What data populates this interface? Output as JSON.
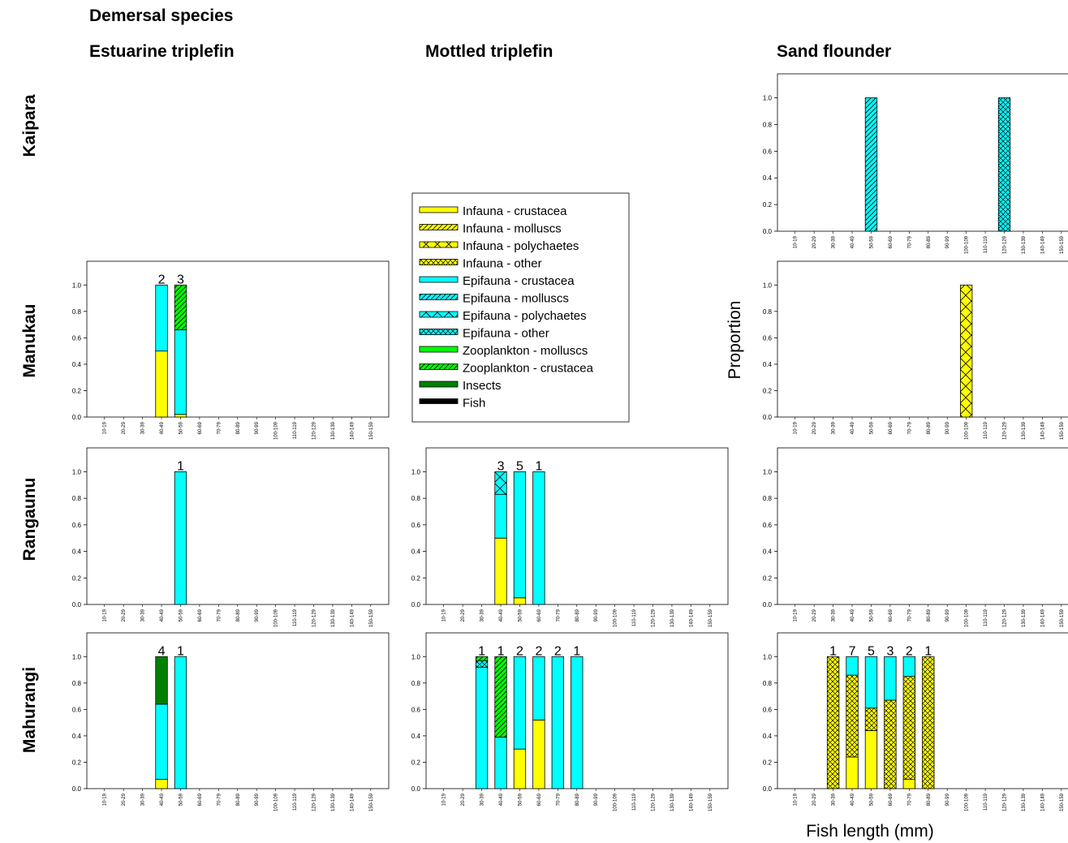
{
  "header": {
    "title": "Demersal species"
  },
  "columns": [
    "Estuarine triplefin",
    "Mottled triplefin",
    "Sand flounder"
  ],
  "rows": [
    "Kaipara",
    "Manukau",
    "Rangaunu",
    "Mahurangi"
  ],
  "axis": {
    "ylabel": "Proportion",
    "xlabel": "Fish length (mm)"
  },
  "legend": [
    {
      "label": "Infauna - crustacea",
      "color": "#ffff00",
      "pattern": "solid"
    },
    {
      "label": "Infauna - molluscs",
      "color": "#ffff00",
      "pattern": "diag"
    },
    {
      "label": "Infauna - polychaetes",
      "color": "#ffff00",
      "pattern": "cross"
    },
    {
      "label": "Infauna - other",
      "color": "#ffff00",
      "pattern": "hatchx"
    },
    {
      "label": "Epifauna - crustacea",
      "color": "#00ffff",
      "pattern": "solid"
    },
    {
      "label": "Epifauna - molluscs",
      "color": "#00ffff",
      "pattern": "diag"
    },
    {
      "label": "Epifauna - polychaetes",
      "color": "#00ffff",
      "pattern": "cross"
    },
    {
      "label": "Epifauna - other",
      "color": "#00ffff",
      "pattern": "hatchx"
    },
    {
      "label": "Zooplankton - molluscs",
      "color": "#00ff00",
      "pattern": "solid"
    },
    {
      "label": "Zooplankton - crustacea",
      "color": "#00ff00",
      "pattern": "diag"
    },
    {
      "label": "Insects",
      "color": "#008000",
      "pattern": "solid"
    },
    {
      "label": "Fish",
      "color": "#000000",
      "pattern": "solid"
    }
  ],
  "chart_data": [
    {
      "type": "bar",
      "stacked": true,
      "row": "Manukau",
      "column": "Estuarine triplefin",
      "categories": [
        "10-19",
        "20-29",
        "30-39",
        "40-49",
        "50-59",
        "60-69",
        "70-79",
        "80-89",
        "90-99",
        "100-109",
        "110-119",
        "120-129",
        "130-139",
        "140-149",
        "150-159"
      ],
      "yticks": [
        "0.0",
        "0.2",
        "0.4",
        "0.6",
        "0.8",
        "1.0"
      ],
      "ylim": [
        0,
        1
      ],
      "bars": [
        {
          "category": "40-49",
          "n": "2",
          "segments": [
            {
              "diet": "Infauna - crustacea",
              "value": 0.5
            },
            {
              "diet": "Epifauna - crustacea",
              "value": 0.5
            }
          ]
        },
        {
          "category": "50-59",
          "n": "3",
          "segments": [
            {
              "diet": "Infauna - crustacea",
              "value": 0.02
            },
            {
              "diet": "Epifauna - crustacea",
              "value": 0.64
            },
            {
              "diet": "Zooplankton - crustacea",
              "value": 0.34
            }
          ]
        }
      ]
    },
    {
      "type": "bar",
      "stacked": true,
      "row": "Rangaunu",
      "column": "Estuarine triplefin",
      "categories": [
        "10-19",
        "20-29",
        "30-39",
        "40-49",
        "50-59",
        "60-69",
        "70-79",
        "80-89",
        "90-99",
        "100-109",
        "110-119",
        "120-129",
        "130-139",
        "140-149",
        "150-159"
      ],
      "yticks": [
        "0.0",
        "0.2",
        "0.4",
        "0.6",
        "0.8",
        "1.0"
      ],
      "ylim": [
        0,
        1
      ],
      "bars": [
        {
          "category": "50-59",
          "n": "1",
          "segments": [
            {
              "diet": "Epifauna - crustacea",
              "value": 1.0
            }
          ]
        }
      ]
    },
    {
      "type": "bar",
      "stacked": true,
      "row": "Mahurangi",
      "column": "Estuarine triplefin",
      "categories": [
        "10-19",
        "20-29",
        "30-39",
        "40-49",
        "50-59",
        "60-69",
        "70-79",
        "80-89",
        "90-99",
        "100-109",
        "110-119",
        "120-129",
        "130-139",
        "140-149",
        "150-159"
      ],
      "yticks": [
        "0.0",
        "0.2",
        "0.4",
        "0.6",
        "0.8",
        "1.0"
      ],
      "ylim": [
        0,
        1
      ],
      "bars": [
        {
          "category": "40-49",
          "n": "4",
          "segments": [
            {
              "diet": "Infauna - crustacea",
              "value": 0.07
            },
            {
              "diet": "Epifauna - crustacea",
              "value": 0.57
            },
            {
              "diet": "Insects",
              "value": 0.36
            }
          ]
        },
        {
          "category": "50-59",
          "n": "1",
          "segments": [
            {
              "diet": "Epifauna - crustacea",
              "value": 1.0
            }
          ]
        }
      ]
    },
    {
      "type": "bar",
      "stacked": true,
      "row": "Rangaunu",
      "column": "Mottled triplefin",
      "categories": [
        "10-19",
        "20-29",
        "30-39",
        "40-49",
        "50-59",
        "60-69",
        "70-79",
        "80-89",
        "90-99",
        "100-109",
        "110-119",
        "120-129",
        "130-139",
        "140-149",
        "150-159"
      ],
      "yticks": [
        "0.0",
        "0.2",
        "0.4",
        "0.6",
        "0.8",
        "1.0"
      ],
      "ylim": [
        0,
        1
      ],
      "bars": [
        {
          "category": "40-49",
          "n": "3",
          "segments": [
            {
              "diet": "Infauna - crustacea",
              "value": 0.5
            },
            {
              "diet": "Epifauna - crustacea",
              "value": 0.33
            },
            {
              "diet": "Epifauna - polychaetes",
              "value": 0.17
            }
          ]
        },
        {
          "category": "50-59",
          "n": "5",
          "segments": [
            {
              "diet": "Infauna - crustacea",
              "value": 0.05
            },
            {
              "diet": "Epifauna - crustacea",
              "value": 0.95
            }
          ]
        },
        {
          "category": "60-69",
          "n": "1",
          "segments": [
            {
              "diet": "Epifauna - crustacea",
              "value": 1.0
            }
          ]
        }
      ]
    },
    {
      "type": "bar",
      "stacked": true,
      "row": "Mahurangi",
      "column": "Mottled triplefin",
      "categories": [
        "10-19",
        "20-29",
        "30-39",
        "40-49",
        "50-59",
        "60-69",
        "70-79",
        "80-89",
        "90-99",
        "100-109",
        "110-119",
        "120-129",
        "130-139",
        "140-149",
        "150-159"
      ],
      "yticks": [
        "0.0",
        "0.2",
        "0.4",
        "0.6",
        "0.8",
        "1.0"
      ],
      "ylim": [
        0,
        1
      ],
      "bars": [
        {
          "category": "30-39",
          "n": "1",
          "segments": [
            {
              "diet": "Epifauna - crustacea",
              "value": 0.92
            },
            {
              "diet": "Epifauna - other",
              "value": 0.05
            },
            {
              "diet": "Zooplankton - crustacea",
              "value": 0.03
            }
          ]
        },
        {
          "category": "40-49",
          "n": "1",
          "segments": [
            {
              "diet": "Epifauna - crustacea",
              "value": 0.39
            },
            {
              "diet": "Zooplankton - crustacea",
              "value": 0.61
            }
          ]
        },
        {
          "category": "50-59",
          "n": "2",
          "segments": [
            {
              "diet": "Infauna - crustacea",
              "value": 0.3
            },
            {
              "diet": "Epifauna - crustacea",
              "value": 0.7
            }
          ]
        },
        {
          "category": "60-69",
          "n": "2",
          "segments": [
            {
              "diet": "Infauna - crustacea",
              "value": 0.52
            },
            {
              "diet": "Epifauna - crustacea",
              "value": 0.48
            }
          ]
        },
        {
          "category": "70-79",
          "n": "2",
          "segments": [
            {
              "diet": "Epifauna - crustacea",
              "value": 1.0
            }
          ]
        },
        {
          "category": "80-89",
          "n": "1",
          "segments": [
            {
              "diet": "Epifauna - crustacea",
              "value": 1.0
            }
          ]
        }
      ]
    },
    {
      "type": "bar",
      "stacked": true,
      "row": "Kaipara",
      "column": "Sand flounder",
      "categories": [
        "10-19",
        "20-29",
        "30-39",
        "40-49",
        "50-59",
        "60-69",
        "70-79",
        "80-89",
        "90-99",
        "100-109",
        "110-119",
        "120-129",
        "130-139",
        "140-149",
        "150-159"
      ],
      "yticks": [
        "0.0",
        "0.2",
        "0.4",
        "0.6",
        "0.8",
        "1.0"
      ],
      "ylim": [
        0,
        1
      ],
      "bars": [
        {
          "category": "50-59",
          "n": "",
          "segments": [
            {
              "diet": "Epifauna - molluscs",
              "value": 1.0
            }
          ]
        },
        {
          "category": "120-129",
          "n": "",
          "segments": [
            {
              "diet": "Epifauna - other",
              "value": 1.0
            }
          ]
        }
      ]
    },
    {
      "type": "bar",
      "stacked": true,
      "row": "Manukau",
      "column": "Sand flounder",
      "categories": [
        "10-19",
        "20-29",
        "30-39",
        "40-49",
        "50-59",
        "60-69",
        "70-79",
        "80-89",
        "90-99",
        "100-109",
        "110-119",
        "120-129",
        "130-139",
        "140-149",
        "150-159"
      ],
      "yticks": [
        "0.0",
        "0.2",
        "0.4",
        "0.6",
        "0.8",
        "1.0"
      ],
      "ylim": [
        0,
        1
      ],
      "bars": [
        {
          "category": "100-109",
          "n": "",
          "segments": [
            {
              "diet": "Infauna - polychaetes",
              "value": 1.0
            }
          ]
        }
      ]
    },
    {
      "type": "bar",
      "stacked": true,
      "row": "Rangaunu",
      "column": "Sand flounder",
      "categories": [
        "10-19",
        "20-29",
        "30-39",
        "40-49",
        "50-59",
        "60-69",
        "70-79",
        "80-89",
        "90-99",
        "100-109",
        "110-119",
        "120-129",
        "130-139",
        "140-149",
        "150-159"
      ],
      "yticks": [
        "0.0",
        "0.2",
        "0.4",
        "0.6",
        "0.8",
        "1.0"
      ],
      "ylim": [
        0,
        1
      ],
      "bars": []
    },
    {
      "type": "bar",
      "stacked": true,
      "row": "Mahurangi",
      "column": "Sand flounder",
      "categories": [
        "10-19",
        "20-29",
        "30-39",
        "40-49",
        "50-59",
        "60-69",
        "70-79",
        "80-89",
        "90-99",
        "100-109",
        "110-119",
        "120-129",
        "130-139",
        "140-149",
        "150-159"
      ],
      "yticks": [
        "0.0",
        "0.2",
        "0.4",
        "0.6",
        "0.8",
        "1.0"
      ],
      "ylim": [
        0,
        1
      ],
      "bars": [
        {
          "category": "30-39",
          "n": "1",
          "segments": [
            {
              "diet": "Infauna - other",
              "value": 1.0
            }
          ]
        },
        {
          "category": "40-49",
          "n": "7",
          "segments": [
            {
              "diet": "Infauna - crustacea",
              "value": 0.24
            },
            {
              "diet": "Infauna - other",
              "value": 0.62
            },
            {
              "diet": "Epifauna - crustacea",
              "value": 0.14
            }
          ]
        },
        {
          "category": "50-59",
          "n": "5",
          "segments": [
            {
              "diet": "Infauna - crustacea",
              "value": 0.44
            },
            {
              "diet": "Infauna - other",
              "value": 0.17
            },
            {
              "diet": "Epifauna - crustacea",
              "value": 0.39
            }
          ]
        },
        {
          "category": "60-69",
          "n": "3",
          "segments": [
            {
              "diet": "Infauna - other",
              "value": 0.67
            },
            {
              "diet": "Epifauna - crustacea",
              "value": 0.33
            }
          ]
        },
        {
          "category": "70-79",
          "n": "2",
          "segments": [
            {
              "diet": "Infauna - crustacea",
              "value": 0.07
            },
            {
              "diet": "Infauna - other",
              "value": 0.78
            },
            {
              "diet": "Epifauna - crustacea",
              "value": 0.15
            }
          ]
        },
        {
          "category": "80-89",
          "n": "1",
          "segments": [
            {
              "diet": "Infauna - other",
              "value": 1.0
            }
          ]
        }
      ]
    }
  ]
}
